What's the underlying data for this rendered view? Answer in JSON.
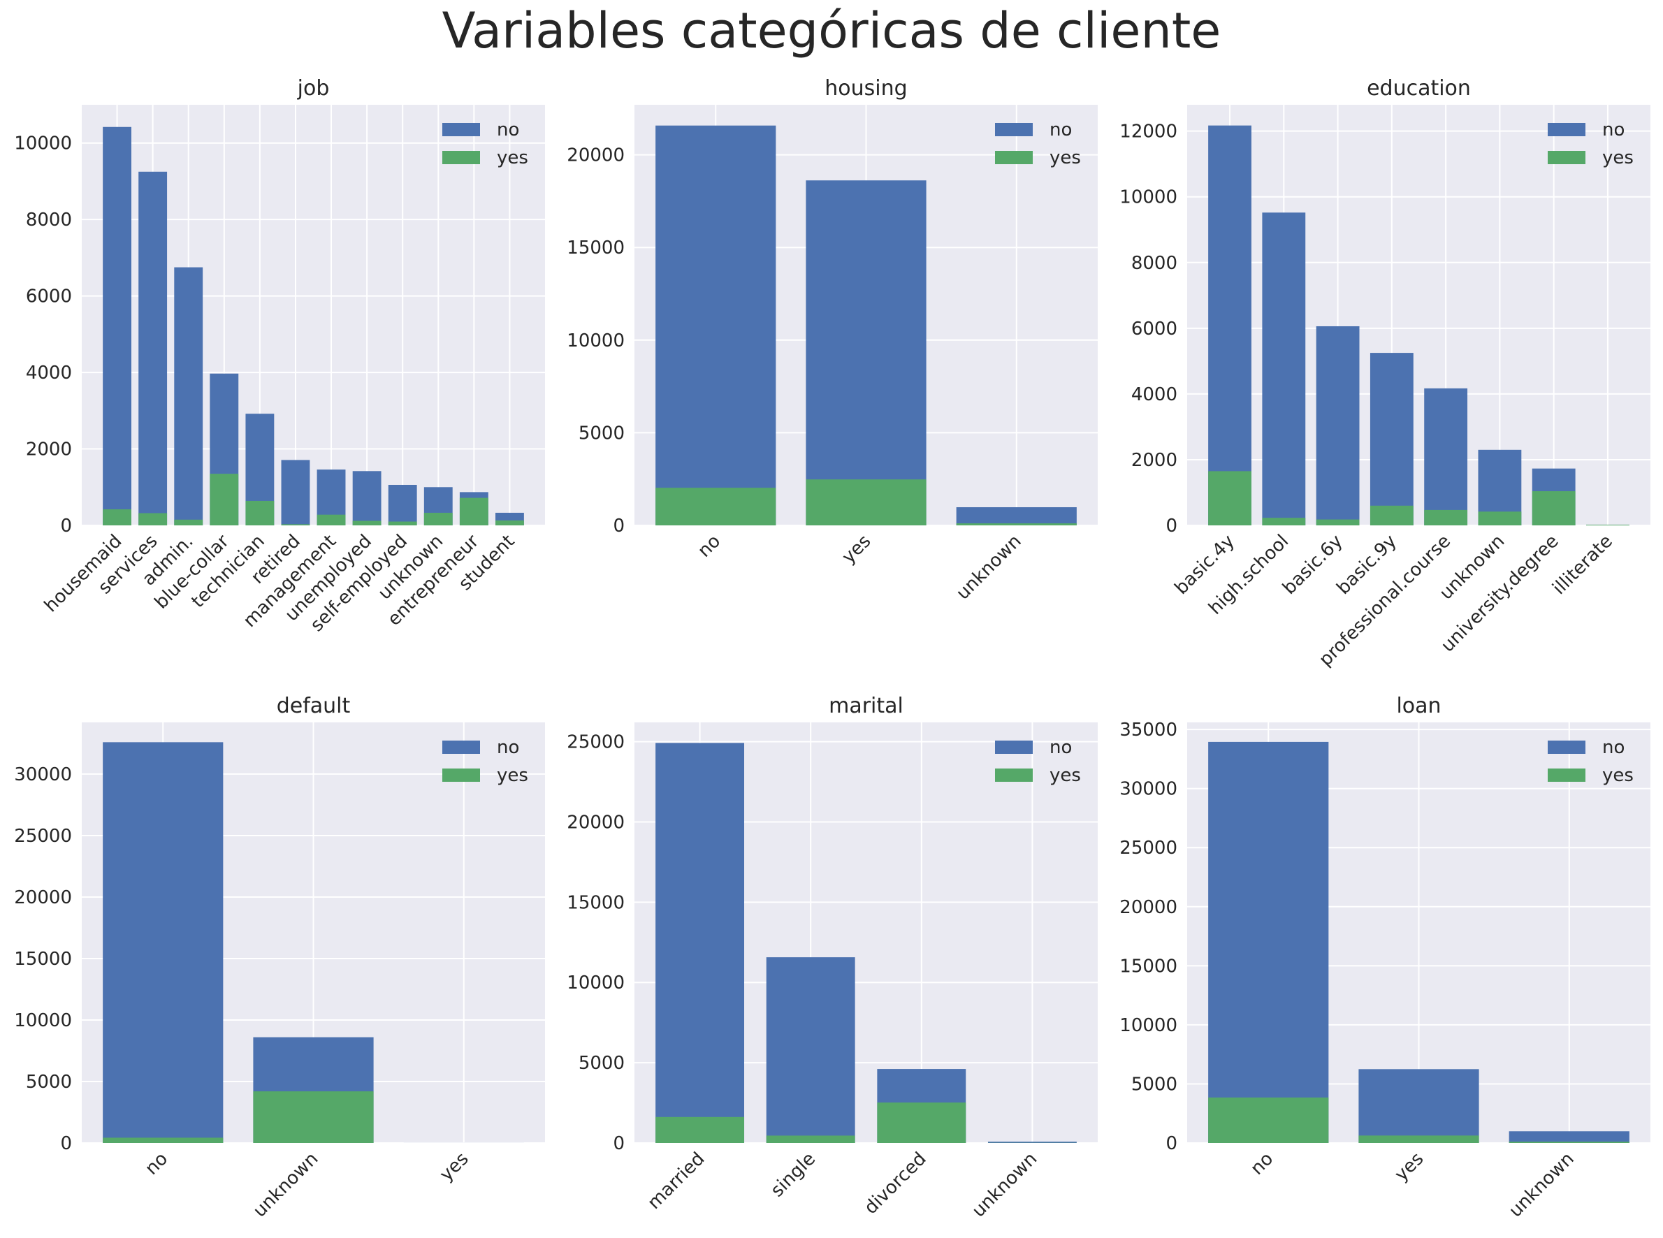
{
  "suptitle": "Variables categóricas de cliente",
  "colors": {
    "no": "#4c72b0",
    "yes": "#55a868",
    "background": "#eaeaf2",
    "grid": "#ffffff"
  },
  "legend": {
    "position": "upper right",
    "entries": [
      "no",
      "yes"
    ]
  },
  "chart_data": [
    {
      "type": "bar",
      "stacked": "overlay",
      "title": "job",
      "categories": [
        "housemaid",
        "services",
        "admin.",
        "blue-collar",
        "technician",
        "retired",
        "management",
        "unemployed",
        "self-employed",
        "unknown",
        "entrepreneur",
        "student"
      ],
      "series": [
        {
          "name": "no",
          "values": [
            10420,
            9250,
            6750,
            3970,
            2920,
            1710,
            1460,
            1420,
            1060,
            1000,
            870,
            330
          ]
        },
        {
          "name": "yes",
          "values": [
            420,
            320,
            150,
            1350,
            640,
            30,
            280,
            120,
            100,
            330,
            720,
            130
          ]
        }
      ],
      "ylim": [
        0,
        11000
      ],
      "yticks": [
        0,
        2000,
        4000,
        6000,
        8000,
        10000
      ],
      "xtick_rotation": 45
    },
    {
      "type": "bar",
      "stacked": "overlay",
      "title": "housing",
      "categories": [
        "no",
        "yes",
        "unknown"
      ],
      "series": [
        {
          "name": "no",
          "values": [
            21580,
            18620,
            980
          ]
        },
        {
          "name": "yes",
          "values": [
            2030,
            2480,
            110
          ]
        }
      ],
      "ylim": [
        0,
        22700
      ],
      "yticks": [
        0,
        5000,
        10000,
        15000,
        20000
      ],
      "xtick_rotation": 45
    },
    {
      "type": "bar",
      "stacked": "overlay",
      "title": "education",
      "categories": [
        "basic.4y",
        "high.school",
        "basic.6y",
        "basic.9y",
        "professional.course",
        "unknown",
        "university.degree",
        "illiterate"
      ],
      "series": [
        {
          "name": "no",
          "values": [
            12170,
            9520,
            6060,
            5250,
            4170,
            2300,
            1730,
            20
          ]
        },
        {
          "name": "yes",
          "values": [
            1650,
            230,
            180,
            600,
            470,
            420,
            1040,
            20
          ]
        }
      ],
      "ylim": [
        0,
        12800
      ],
      "yticks": [
        0,
        2000,
        4000,
        6000,
        8000,
        10000,
        12000
      ],
      "xtick_rotation": 45
    },
    {
      "type": "bar",
      "stacked": "overlay",
      "title": "default",
      "categories": [
        "no",
        "unknown",
        "yes"
      ],
      "series": [
        {
          "name": "no",
          "values": [
            32590,
            8600,
            3
          ]
        },
        {
          "name": "yes",
          "values": [
            430,
            4200,
            0
          ]
        }
      ],
      "ylim": [
        0,
        34200
      ],
      "yticks": [
        0,
        5000,
        10000,
        15000,
        20000,
        25000,
        30000
      ],
      "xtick_rotation": 45
    },
    {
      "type": "bar",
      "stacked": "overlay",
      "title": "marital",
      "categories": [
        "married",
        "single",
        "divorced",
        "unknown"
      ],
      "series": [
        {
          "name": "no",
          "values": [
            24920,
            11570,
            4610,
            80
          ]
        },
        {
          "name": "yes",
          "values": [
            1620,
            460,
            2520,
            10
          ]
        }
      ],
      "ylim": [
        0,
        26200
      ],
      "yticks": [
        0,
        5000,
        10000,
        15000,
        20000,
        25000
      ],
      "xtick_rotation": 45
    },
    {
      "type": "bar",
      "stacked": "overlay",
      "title": "loan",
      "categories": [
        "no",
        "yes",
        "unknown"
      ],
      "series": [
        {
          "name": "no",
          "values": [
            33950,
            6250,
            990
          ]
        },
        {
          "name": "yes",
          "values": [
            3850,
            630,
            110
          ]
        }
      ],
      "ylim": [
        0,
        35600
      ],
      "yticks": [
        0,
        5000,
        10000,
        15000,
        20000,
        25000,
        30000,
        35000
      ],
      "xtick_rotation": 45
    }
  ]
}
